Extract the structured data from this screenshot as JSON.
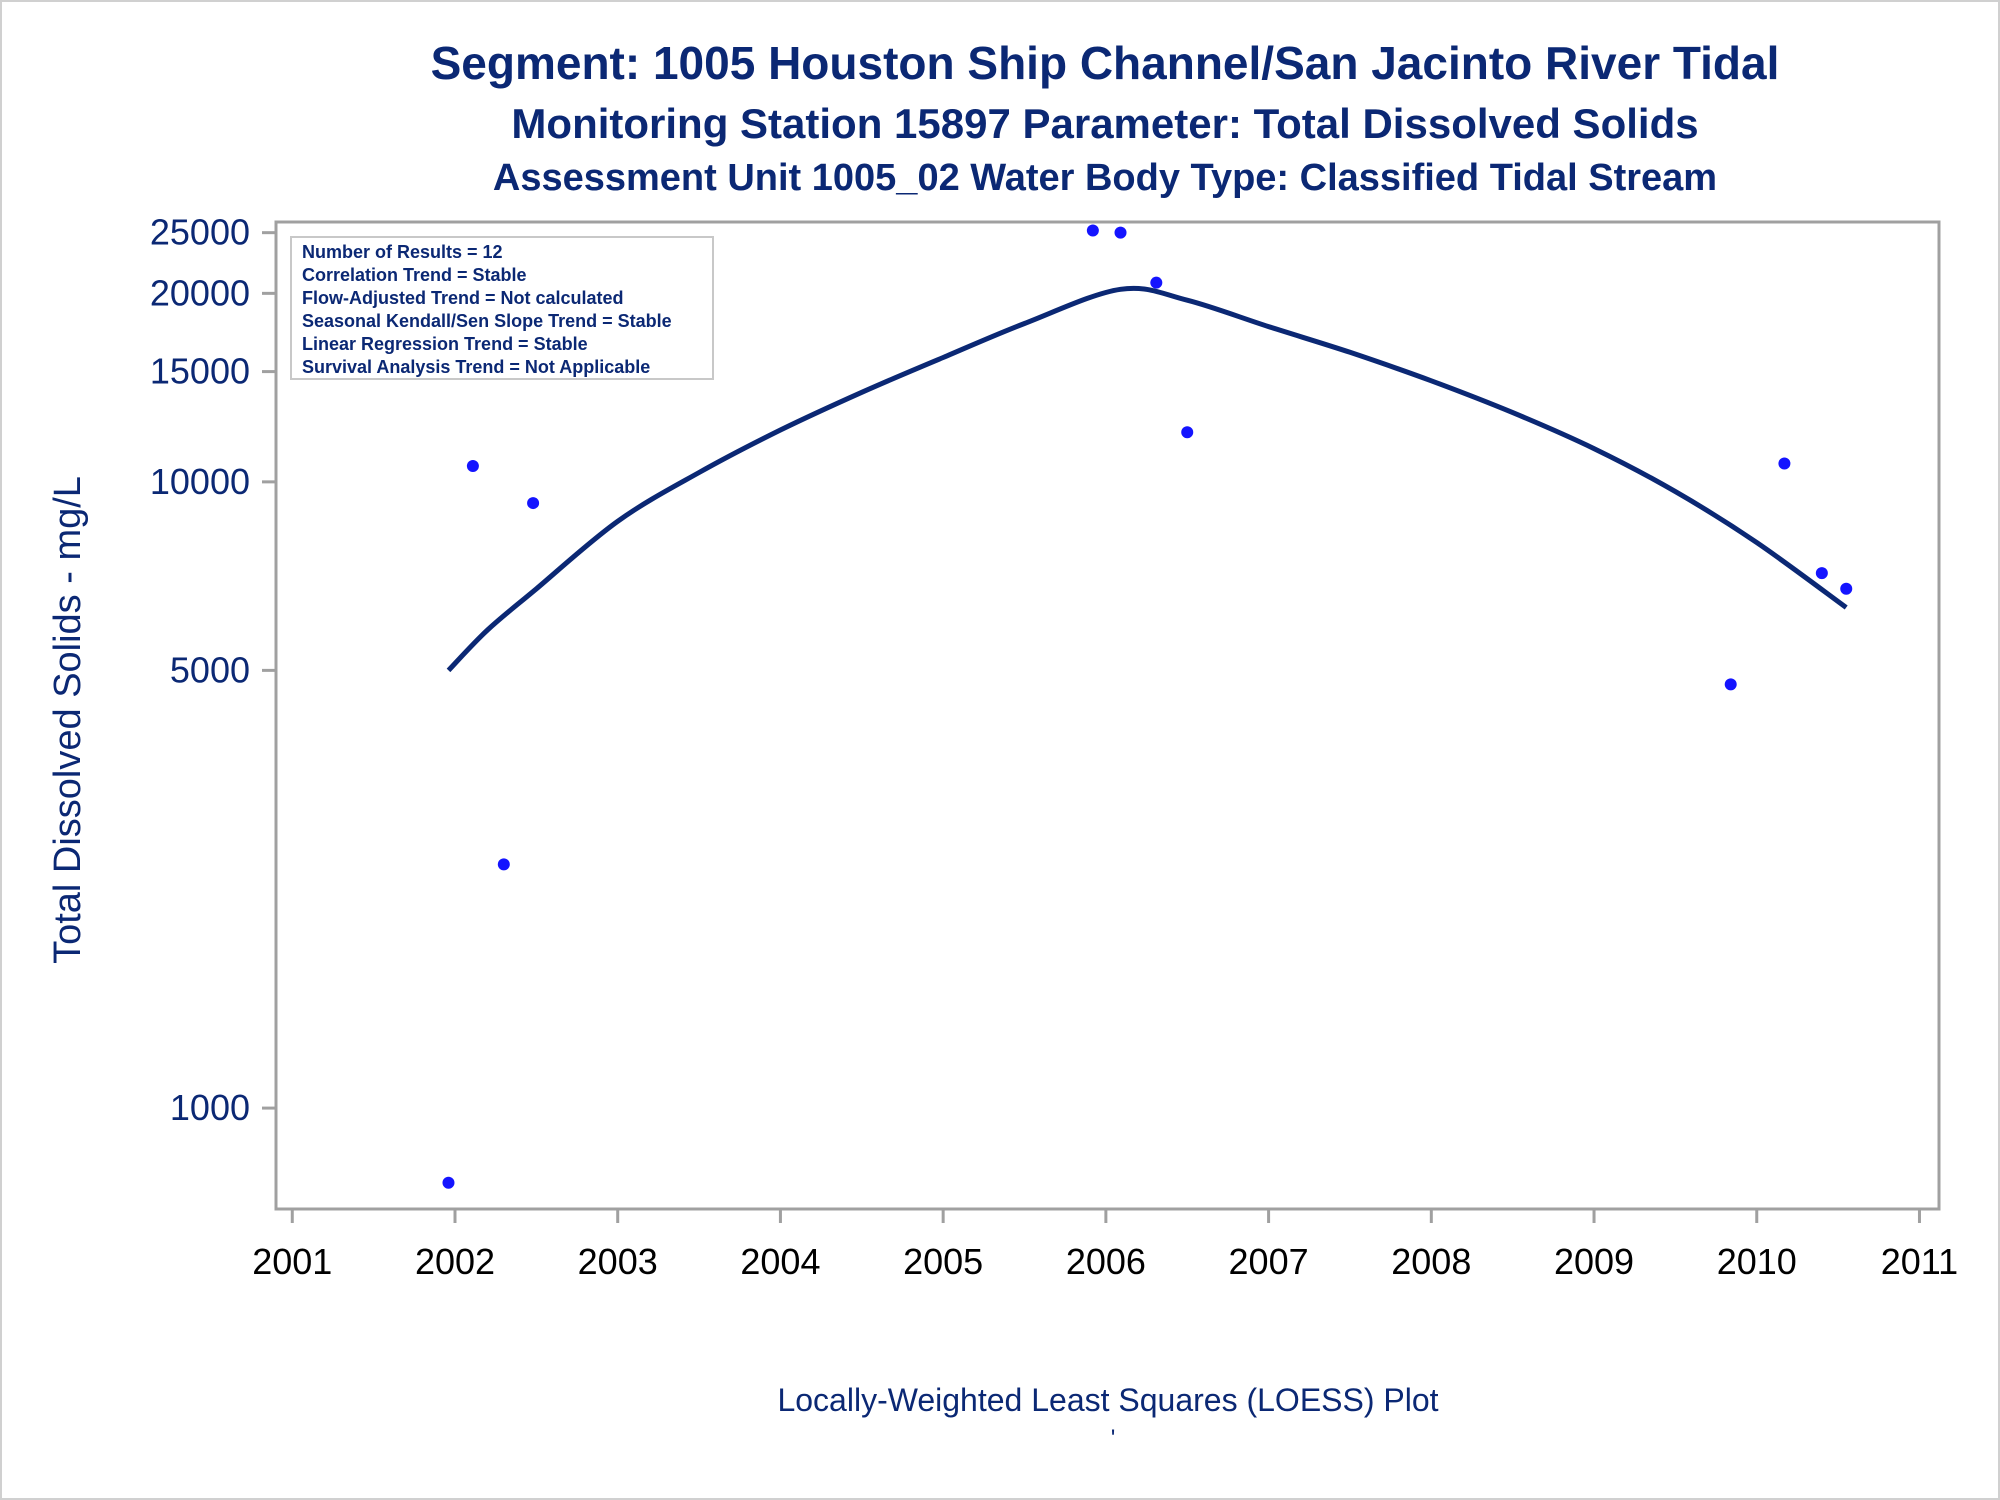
{
  "colors": {
    "title": "#0b2874",
    "ytext": "#0b2874",
    "xtext": "#000000",
    "line": "#0b2874",
    "points": "#1414ff",
    "frame": "#a0a0a0"
  },
  "chart_data": {
    "type": "scatter",
    "titles": [
      "Segment: 1005  Houston Ship Channel/San Jacinto River Tidal",
      "Monitoring Station 15897 Parameter: Total Dissolved Solids",
      "Assessment Unit 1005_02   Water Body Type: Classified Tidal Stream"
    ],
    "ylabel": "Total Dissolved Solids - mg/L",
    "xlabel": "Locally-Weighted Least Squares (LOESS) Plot",
    "footnote": "'",
    "yscale": "log",
    "ylim": [
      690,
      26000
    ],
    "xlim": [
      2000.9,
      2011.12
    ],
    "xticks": [
      2001,
      2002,
      2003,
      2004,
      2005,
      2006,
      2007,
      2008,
      2009,
      2010,
      2011
    ],
    "yticks": [
      1000,
      5000,
      10000,
      15000,
      20000,
      25000
    ],
    "xtick_labels": [
      "2001",
      "2002",
      "2003",
      "2004",
      "2005",
      "2006",
      "2007",
      "2008",
      "2009",
      "2010",
      "2011"
    ],
    "ytick_labels": [
      "1000",
      "5000",
      "10000",
      "15000",
      "20000",
      "25000"
    ],
    "stats_box": [
      "Number of Results = 12",
      "Correlation Trend = Stable",
      "Flow-Adjusted Trend = Not calculated",
      "Seasonal Kendall/Sen Slope Trend = Stable",
      "Linear Regression Trend = Stable",
      "Survival Analysis Trend = Not Applicable"
    ],
    "points": [
      {
        "x": 2001.96,
        "y": 760
      },
      {
        "x": 2002.11,
        "y": 10600
      },
      {
        "x": 2002.3,
        "y": 2450
      },
      {
        "x": 2002.48,
        "y": 9250
      },
      {
        "x": 2005.92,
        "y": 25200
      },
      {
        "x": 2006.09,
        "y": 25000
      },
      {
        "x": 2006.31,
        "y": 20800
      },
      {
        "x": 2006.5,
        "y": 12000
      },
      {
        "x": 2009.84,
        "y": 4750
      },
      {
        "x": 2010.17,
        "y": 10700
      },
      {
        "x": 2010.4,
        "y": 7150
      },
      {
        "x": 2010.55,
        "y": 6750
      }
    ],
    "loess": [
      {
        "x": 2001.96,
        "y": 5000
      },
      {
        "x": 2002.2,
        "y": 5800
      },
      {
        "x": 2002.5,
        "y": 6750
      },
      {
        "x": 2003.0,
        "y": 8650
      },
      {
        "x": 2003.5,
        "y": 10350
      },
      {
        "x": 2004.0,
        "y": 12100
      },
      {
        "x": 2004.5,
        "y": 13900
      },
      {
        "x": 2005.0,
        "y": 15800
      },
      {
        "x": 2005.5,
        "y": 17900
      },
      {
        "x": 2006.09,
        "y": 20300
      },
      {
        "x": 2006.5,
        "y": 19500
      },
      {
        "x": 2007.0,
        "y": 17700
      },
      {
        "x": 2007.5,
        "y": 16100
      },
      {
        "x": 2008.0,
        "y": 14500
      },
      {
        "x": 2008.5,
        "y": 12900
      },
      {
        "x": 2009.0,
        "y": 11300
      },
      {
        "x": 2009.5,
        "y": 9650
      },
      {
        "x": 2010.0,
        "y": 8000
      },
      {
        "x": 2010.55,
        "y": 6300
      }
    ]
  }
}
